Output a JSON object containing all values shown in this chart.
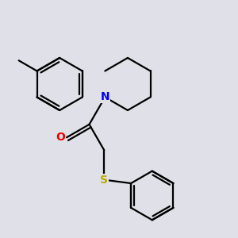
{
  "bg_color": "#e0e0e8",
  "bond_color": "#000000",
  "N_color": "#0000ee",
  "O_color": "#ee0000",
  "S_color": "#bbaa00",
  "bond_width": 1.6,
  "font_size_atom": 10,
  "figsize": [
    3.0,
    3.0
  ],
  "dpi": 100,
  "xlim": [
    0.15,
    2.85
  ],
  "ylim": [
    0.2,
    2.8
  ]
}
